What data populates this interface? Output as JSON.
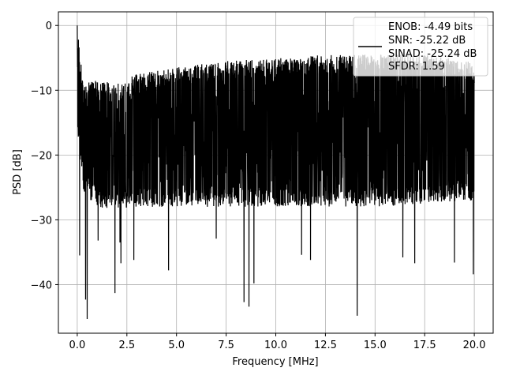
{
  "chart_data": {
    "type": "line",
    "title": "",
    "xlabel": "Frequency [MHz]",
    "ylabel": "PSD [dB]",
    "xlim": [
      -0.95,
      20.95
    ],
    "ylim": [
      -47.5,
      2.1
    ],
    "grid": true,
    "x_ticks": [
      0.0,
      2.5,
      5.0,
      7.5,
      10.0,
      12.5,
      15.0,
      17.5,
      20.0
    ],
    "x_tick_labels": [
      "0.0",
      "2.5",
      "5.0",
      "7.5",
      "10.0",
      "12.5",
      "15.0",
      "17.5",
      "20.0"
    ],
    "y_ticks": [
      0,
      -10,
      -20,
      -30,
      -40
    ],
    "y_tick_labels": [
      "0",
      "−10",
      "−20",
      "−30",
      "−40"
    ],
    "legend": {
      "placement": "top-right",
      "lines": [
        "ENOB: -4.49 bits",
        "SNR: -25.22 dB",
        "SINAD: -25.24 dB",
        "SFDR: 1.59"
      ]
    },
    "series": [
      {
        "color": "#000000",
        "envelope": {
          "x": [
            0.0,
            0.3,
            1.0,
            2.0,
            3.0,
            5.0,
            7.5,
            10.0,
            12.5,
            15.0,
            17.5,
            20.0
          ],
          "upper": [
            0.0,
            -9.0,
            -8.5,
            -9.0,
            -7.5,
            -6.5,
            -5.5,
            -5.0,
            -4.5,
            -4.5,
            -4.5,
            -5.5
          ],
          "lower": [
            -16.0,
            -26.0,
            -28.0,
            -28.5,
            -28.0,
            -28.0,
            -28.0,
            -28.0,
            -28.0,
            -28.0,
            -27.5,
            -27.0
          ]
        },
        "dips": [
          {
            "x": 0.12,
            "y": -35.5
          },
          {
            "x": 0.42,
            "y": -42.3
          },
          {
            "x": 0.5,
            "y": -45.3
          },
          {
            "x": 1.05,
            "y": -33.2
          },
          {
            "x": 1.9,
            "y": -41.3
          },
          {
            "x": 2.15,
            "y": -33.5
          },
          {
            "x": 2.2,
            "y": -36.7
          },
          {
            "x": 2.85,
            "y": -36.2
          },
          {
            "x": 4.6,
            "y": -37.8
          },
          {
            "x": 7.0,
            "y": -32.9
          },
          {
            "x": 8.4,
            "y": -42.7
          },
          {
            "x": 8.65,
            "y": -43.4
          },
          {
            "x": 8.9,
            "y": -39.8
          },
          {
            "x": 11.3,
            "y": -35.4
          },
          {
            "x": 11.75,
            "y": -36.2
          },
          {
            "x": 14.1,
            "y": -44.8
          },
          {
            "x": 16.4,
            "y": -35.8
          },
          {
            "x": 17.0,
            "y": -36.7
          },
          {
            "x": 19.0,
            "y": -36.6
          },
          {
            "x": 19.95,
            "y": -38.4
          }
        ],
        "peak": {
          "x": 0.0,
          "y": 0.0
        }
      }
    ]
  }
}
